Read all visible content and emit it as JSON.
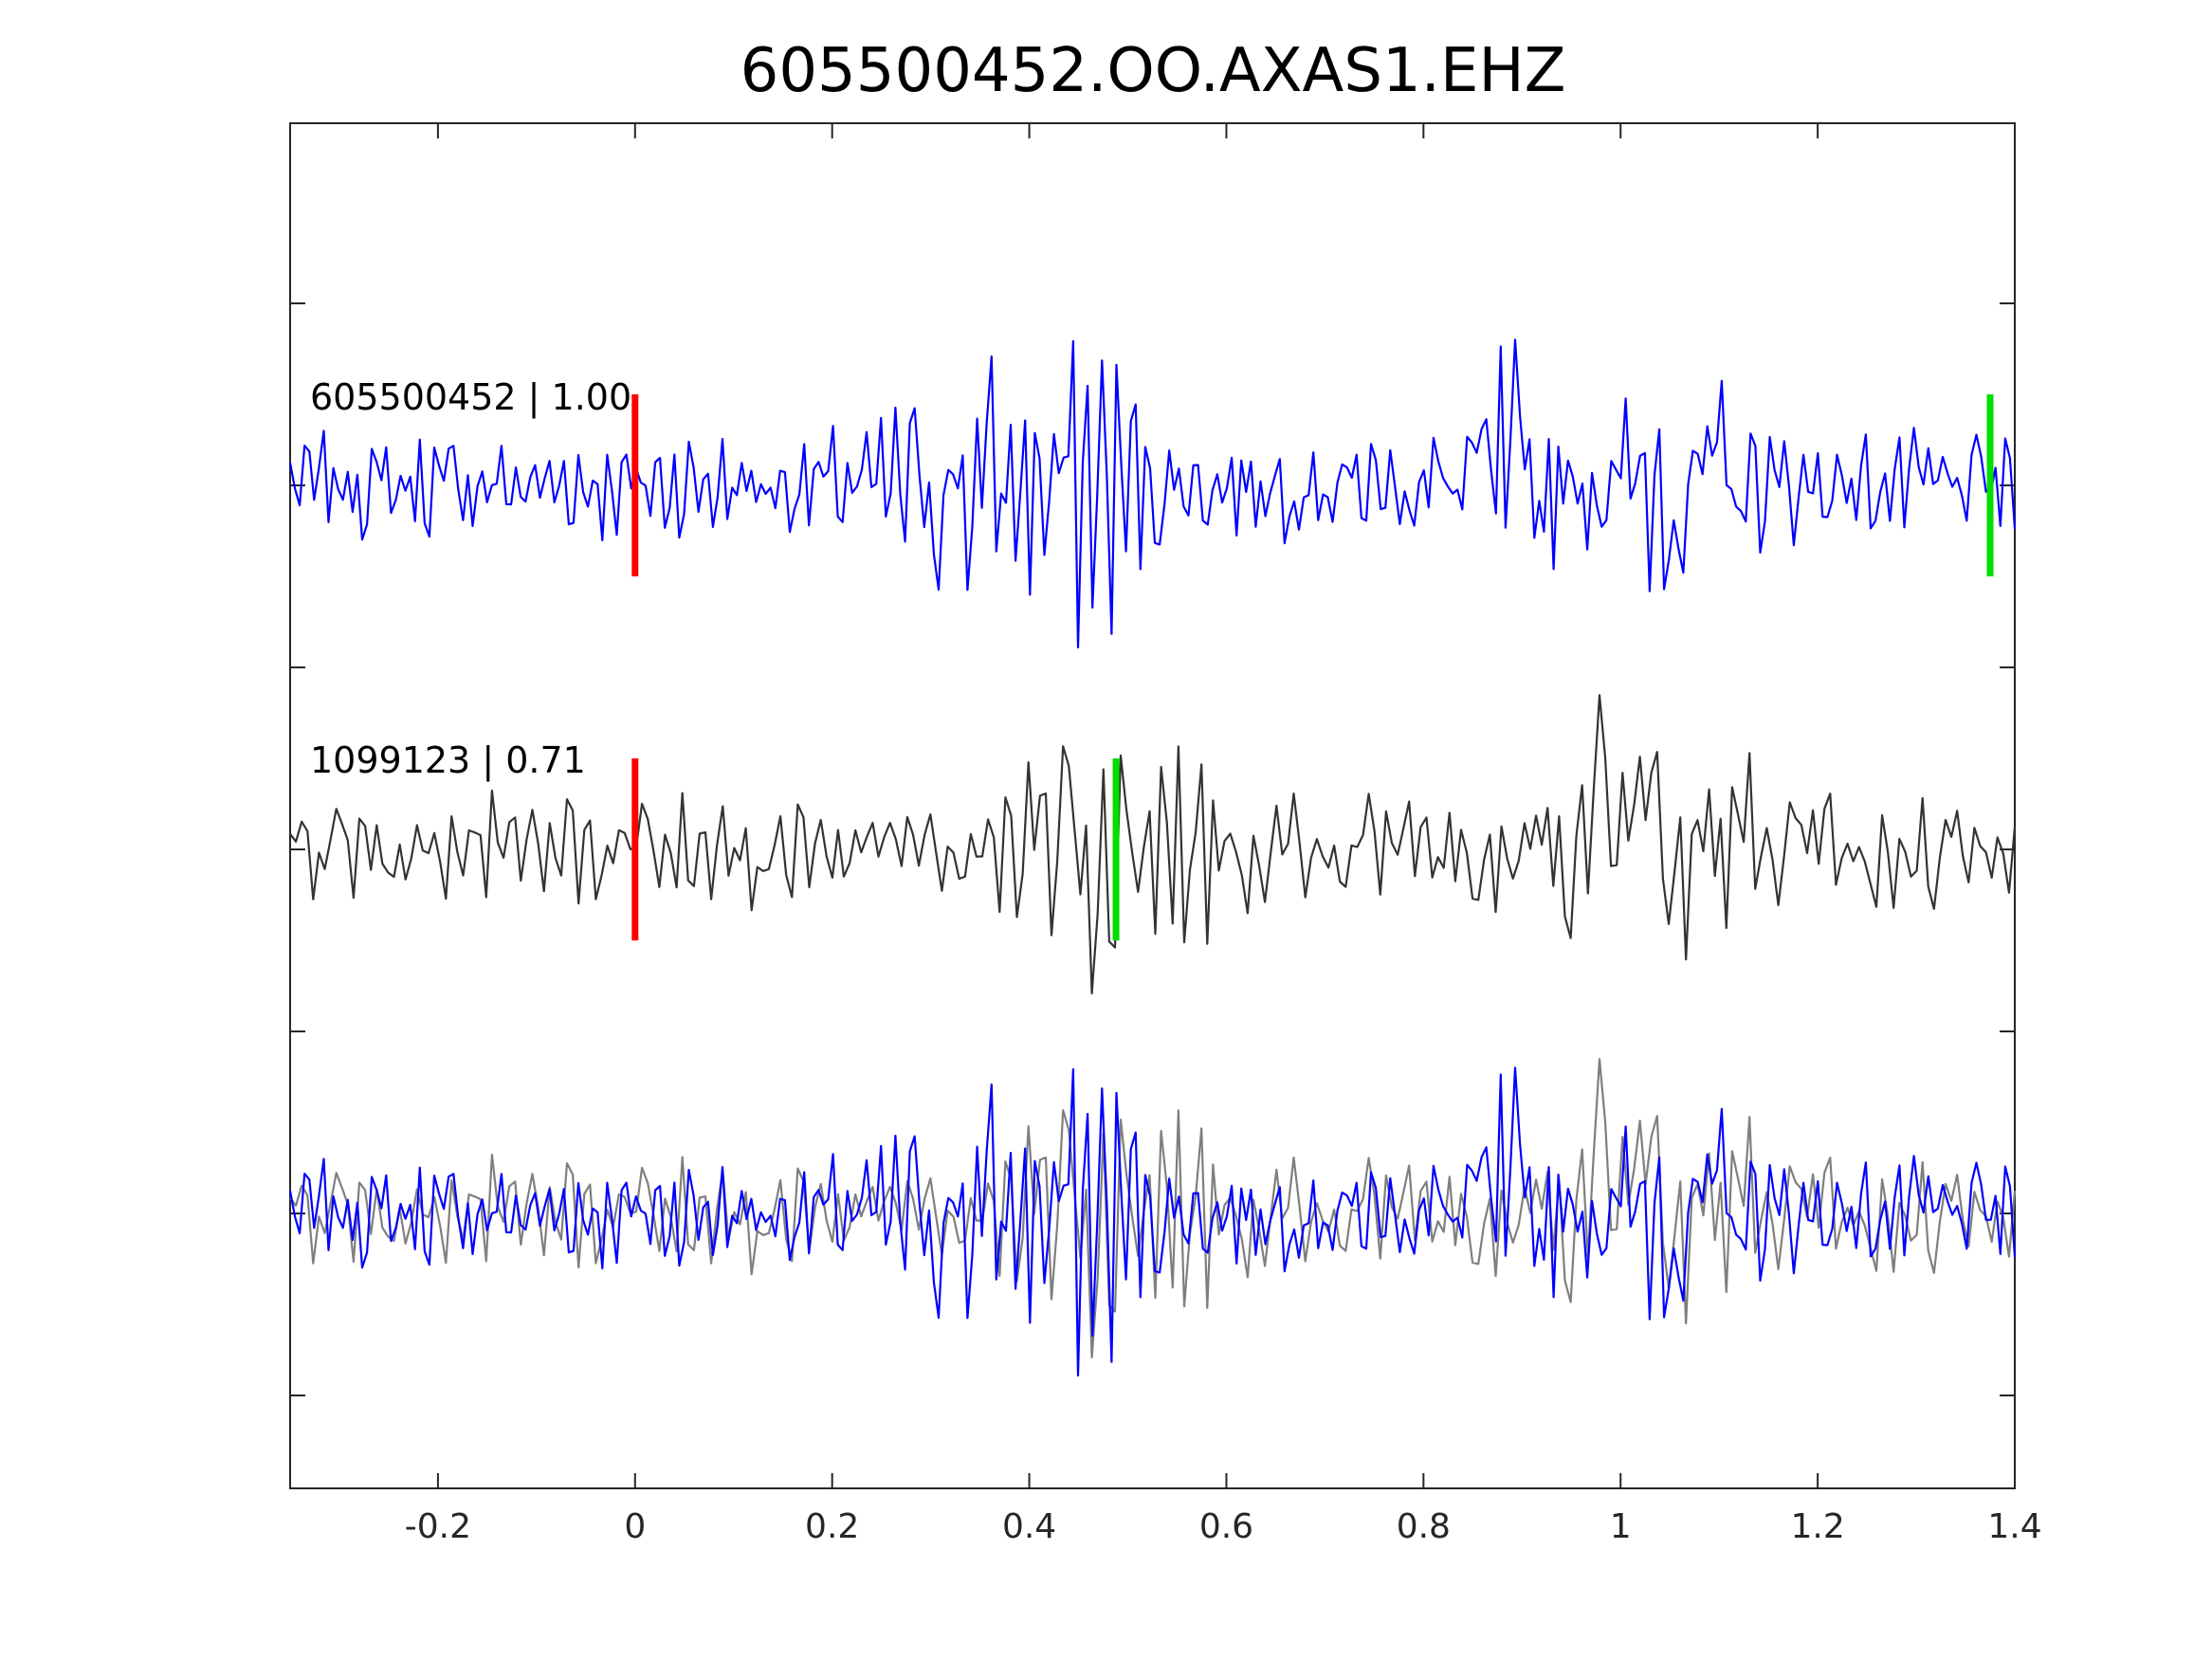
{
  "chart_data": {
    "type": "line",
    "title": "605500452.OO.AXAS1.EHZ",
    "xlabel": "",
    "ylabel": "",
    "xlim": [
      -0.35,
      1.4
    ],
    "x_ticks": [
      -0.2,
      0,
      0.2,
      0.4,
      0.6,
      0.8,
      1,
      1.2,
      1.4
    ],
    "x_tick_labels": [
      "-0.2",
      "0",
      "0.2",
      "0.4",
      "0.6",
      "0.8",
      "1",
      "1.2",
      "1.4"
    ],
    "y_tick_count": 7,
    "grid": false,
    "colors": {
      "template": "#0000ff",
      "match": "#333333",
      "overlay_match": "#7f7f7f",
      "pick_start": "#ff0000",
      "pick_end": "#00dd00"
    },
    "traces": [
      {
        "label": "605500452 | 1.00",
        "color": "#0000ff",
        "pick_start": 0.0,
        "pick_end": 1.375,
        "pick_start_color": "#ff0000",
        "pick_end_color": "#00dd00",
        "note": ""
      },
      {
        "label": "1099123 | 0.71",
        "color": "#333333",
        "pick_start": 0.0,
        "pick_end": 0.488,
        "pick_start_color": "#ff0000",
        "pick_end_color": "#00dd00",
        "note": ""
      },
      {
        "label": "",
        "color": "#0000ff",
        "note": ""
      }
    ],
    "series": [
      {
        "name": "",
        "role": "template",
        "color": "#0000ff",
        "x_start": -0.35,
        "x_end": 1.4,
        "samples": [
          0.02,
          0.06,
          -0.08,
          0.12,
          -0.14,
          0.04,
          0.1,
          -0.1,
          0.22,
          0.18,
          -0.02,
          -0.08,
          0.16,
          0.08,
          -0.14,
          0.18,
          0.1,
          -0.06,
          -0.04,
          0.08,
          0.02,
          -0.12,
          0.16,
          0.14,
          -0.08,
          -0.06,
          0.06,
          0.04,
          -0.14,
          -0.02,
          0.1,
          -0.08,
          0.18,
          0.06,
          0.12,
          -0.06,
          0.02,
          0.18,
          -0.14,
          0.04,
          -0.02,
          0.14,
          -0.12,
          0.08,
          0.06,
          0.02,
          0.02,
          0.12,
          -0.04,
          0.02,
          0.1,
          0.02,
          0.04,
          -0.04,
          -0.08,
          0.04,
          -0.04,
          -0.02,
          0.0,
          -0.06,
          0.04,
          -0.02,
          0.0,
          0.02,
          -0.04,
          0.02,
          0.04,
          -0.02,
          0.1,
          0.08,
          0.0,
          -0.06,
          -0.08,
          0.02,
          0.1,
          0.06,
          0.14,
          0.06,
          0.02,
          0.18,
          0.1,
          -0.1,
          -0.18,
          0.02,
          -0.06,
          0.06,
          0.0,
          0.2,
          0.24,
          0.08,
          0.1,
          0.02,
          -0.02,
          0.16,
          0.26,
          0.18,
          -0.04,
          0.02,
          0.12,
          0.18,
          0.1,
          0.24,
          0.14,
          -0.1,
          0.02,
          0.2,
          -0.12,
          -0.2,
          -0.08,
          0.1,
          0.18,
          0.28,
          0.02,
          -0.18,
          -0.06,
          0.1,
          0.18,
          0.04,
          0.12,
          0.2,
          0.08,
          0.18,
          -0.04,
          0.12,
          0.14,
          0.02,
          0.12,
          0.18,
          -0.06,
          -0.08,
          0.14,
          -0.06,
          0.1,
          0.02,
          -0.04,
          0.06,
          0.14,
          -0.02,
          0.16,
          0.1,
          -0.12,
          0.02,
          0.14,
          0.08,
          0.16,
          -0.06,
          0.02,
          0.1,
          0.06,
          0.04,
          0.18,
          0.3,
          0.1,
          0.02,
          0.14,
          0.12,
          -0.06,
          0.02,
          0.1,
          0.12,
          0.16,
          0.06,
          -0.06,
          -0.16,
          -0.1,
          0.02,
          0.1,
          -0.02,
          0.1,
          0.06,
          0.06,
          0.08,
          0.02,
          0.0,
          0.02,
          -0.06,
          -0.08,
          0.04,
          0.1,
          0.02,
          0.0,
          -0.02,
          0.06,
          0.08,
          0.02,
          0.04,
          -0.02,
          0.06,
          0.02,
          -0.06,
          0.1,
          0.02,
          0.08,
          0.0
        ],
        "amplitude_note": ""
      }
    ]
  }
}
